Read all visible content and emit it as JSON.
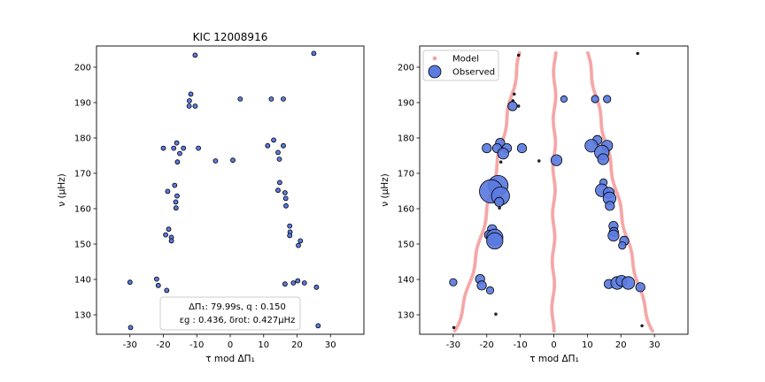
{
  "chart_data": [
    {
      "type": "scatter",
      "title": "KIC 12008916",
      "xlabel": "τ mod ΔΠ₁",
      "ylabel": "ν (μHz)",
      "xlim": [
        -40,
        40
      ],
      "ylim": [
        124.5,
        206
      ],
      "xticks": [
        -30,
        -20,
        -10,
        0,
        10,
        20,
        30
      ],
      "yticks": [
        130,
        140,
        150,
        160,
        170,
        180,
        190,
        200
      ],
      "grid": false,
      "info_box": {
        "line1": "ΔΠ₁: 79.99s, q : 0.150",
        "line2": "εg : 0.436, δrot: 0.427μHz"
      },
      "series": [
        {
          "color": "#5b7be0",
          "points": [
            [
              -10.5,
              203.4
            ],
            [
              25.0,
              203.9
            ],
            [
              -11.8,
              192.4
            ],
            [
              -12.2,
              190.5
            ],
            [
              -12.3,
              189.0
            ],
            [
              -10.5,
              189.0
            ],
            [
              3.0,
              191.0
            ],
            [
              12.3,
              191.0
            ],
            [
              15.9,
              191.0
            ],
            [
              -16.0,
              178.6
            ],
            [
              -20.0,
              177.1
            ],
            [
              -16.9,
              177.1
            ],
            [
              -14.0,
              177.1
            ],
            [
              -9.5,
              177.1
            ],
            [
              -15.1,
              175.6
            ],
            [
              -15.8,
              173.2
            ],
            [
              -4.4,
              173.5
            ],
            [
              0.8,
              173.7
            ],
            [
              13.0,
              179.4
            ],
            [
              11.2,
              177.8
            ],
            [
              15.9,
              177.8
            ],
            [
              14.3,
              175.9
            ],
            [
              14.7,
              174.0
            ],
            [
              -16.6,
              166.6
            ],
            [
              -18.7,
              164.9
            ],
            [
              -15.9,
              163.6
            ],
            [
              -16.3,
              161.9
            ],
            [
              -16.2,
              160.2
            ],
            [
              14.8,
              167.4
            ],
            [
              14.3,
              165.2
            ],
            [
              16.4,
              164.5
            ],
            [
              16.6,
              162.9
            ],
            [
              16.7,
              160.8
            ],
            [
              -18.4,
              154.2
            ],
            [
              -19.3,
              152.6
            ],
            [
              -17.6,
              151.9
            ],
            [
              -17.6,
              150.9
            ],
            [
              17.8,
              155.1
            ],
            [
              17.9,
              153.4
            ],
            [
              17.8,
              152.4
            ],
            [
              21.0,
              150.9
            ],
            [
              20.4,
              149.6
            ],
            [
              -30.0,
              139.2
            ],
            [
              -22.0,
              140.1
            ],
            [
              -21.5,
              138.3
            ],
            [
              -19.0,
              136.9
            ],
            [
              -17.3,
              130.2
            ],
            [
              16.4,
              138.7
            ],
            [
              18.9,
              139.0
            ],
            [
              20.2,
              139.6
            ],
            [
              22.2,
              139.0
            ],
            [
              25.8,
              137.8
            ],
            [
              -29.8,
              126.4
            ],
            [
              26.3,
              126.9
            ]
          ]
        }
      ]
    },
    {
      "type": "scatter",
      "xlabel": "τ mod ΔΠ₁",
      "ylabel": "ν (μHz)",
      "xlim": [
        -40,
        40
      ],
      "ylim": [
        124.5,
        206
      ],
      "xticks": [
        -30,
        -20,
        -10,
        0,
        10,
        20,
        30
      ],
      "yticks": [
        130,
        140,
        150,
        160,
        170,
        180,
        190,
        200
      ],
      "grid": false,
      "legend_position": "top-left",
      "series": [
        {
          "name": "Model",
          "color": "#f4a0a0",
          "tracks": [
            {
              "x_bottom": -29.5,
              "x_top": -10.0
            },
            {
              "x_bottom": -0.3,
              "x_top": 0.3
            },
            {
              "x_bottom": 29.5,
              "x_top": 10.0
            }
          ]
        },
        {
          "name": "Observed",
          "color": "#5b7be0",
          "points": [
            [
              -10.5,
              203.4,
              1
            ],
            [
              25.0,
              203.9,
              1
            ],
            [
              -11.8,
              192.4,
              1.2
            ],
            [
              -12.2,
              190.5,
              1.2
            ],
            [
              -12.3,
              189.0,
              4
            ],
            [
              -10.5,
              189.0,
              1.2
            ],
            [
              3.0,
              191.0,
              2.5
            ],
            [
              12.3,
              191.0,
              3
            ],
            [
              15.9,
              191.0,
              3
            ],
            [
              -16.0,
              178.6,
              4
            ],
            [
              -20.0,
              177.1,
              4
            ],
            [
              -16.9,
              177.1,
              4
            ],
            [
              -14.0,
              177.1,
              4
            ],
            [
              -9.5,
              177.1,
              4
            ],
            [
              -15.1,
              175.6,
              5
            ],
            [
              -15.8,
              173.2,
              1.5
            ],
            [
              -4.4,
              173.5,
              1.2
            ],
            [
              0.8,
              173.7,
              5
            ],
            [
              13.0,
              179.4,
              4
            ],
            [
              11.2,
              177.8,
              6
            ],
            [
              15.9,
              177.8,
              5
            ],
            [
              14.3,
              175.9,
              7
            ],
            [
              14.7,
              174.0,
              5
            ],
            [
              -16.6,
              166.6,
              10
            ],
            [
              -18.7,
              164.9,
              12
            ],
            [
              -15.9,
              163.6,
              9
            ],
            [
              -16.3,
              161.9,
              4
            ],
            [
              -16.2,
              160.2,
              1.5
            ],
            [
              14.8,
              167.4,
              3
            ],
            [
              14.3,
              165.2,
              6
            ],
            [
              16.4,
              164.5,
              5
            ],
            [
              16.6,
              162.9,
              6
            ],
            [
              16.7,
              160.8,
              4
            ],
            [
              -18.4,
              154.2,
              4
            ],
            [
              -19.3,
              152.6,
              4
            ],
            [
              -17.6,
              151.9,
              8
            ],
            [
              -17.6,
              150.9,
              8
            ],
            [
              17.8,
              155.1,
              4
            ],
            [
              17.9,
              153.4,
              4
            ],
            [
              17.8,
              152.4,
              5
            ],
            [
              21.0,
              150.9,
              4
            ],
            [
              20.4,
              149.6,
              3
            ],
            [
              -30.0,
              139.2,
              3
            ],
            [
              -22.0,
              140.1,
              4
            ],
            [
              -21.5,
              138.3,
              4
            ],
            [
              -19.0,
              136.9,
              3
            ],
            [
              -17.3,
              130.2,
              1
            ],
            [
              16.4,
              138.7,
              4
            ],
            [
              18.9,
              139.0,
              6
            ],
            [
              20.2,
              139.6,
              5
            ],
            [
              22.2,
              139.0,
              6
            ],
            [
              25.8,
              137.8,
              4
            ],
            [
              -29.8,
              126.4,
              1
            ],
            [
              26.3,
              126.9,
              1
            ]
          ]
        }
      ]
    }
  ]
}
